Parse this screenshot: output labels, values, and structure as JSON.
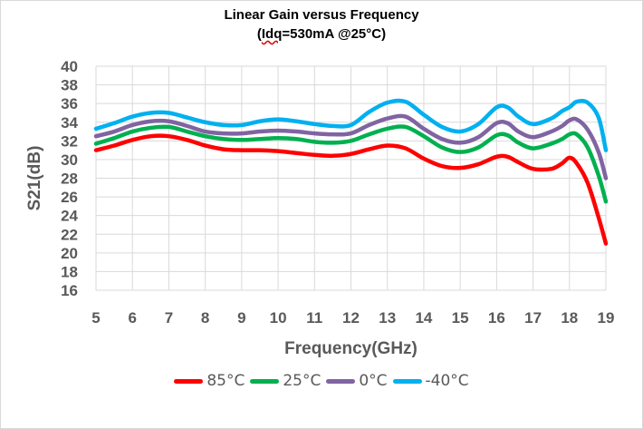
{
  "chart_data": {
    "type": "line",
    "title": "Linear Gain versus Frequency",
    "subtitle_prefix": "(",
    "subtitle_underlined": "Idq",
    "subtitle_rest": "=530mA @25°C)",
    "xlabel": "Frequency(GHz)",
    "ylabel": "S21(dB)",
    "xlim": [
      5,
      19
    ],
    "ylim": [
      16,
      40
    ],
    "xticks": [
      "5",
      "6",
      "7",
      "8",
      "9",
      "10",
      "11",
      "12",
      "13",
      "14",
      "15",
      "16",
      "17",
      "18",
      "19"
    ],
    "yticks": [
      "16",
      "18",
      "20",
      "22",
      "24",
      "26",
      "28",
      "30",
      "32",
      "34",
      "36",
      "38",
      "40"
    ],
    "grid": true,
    "legend_position": "bottom",
    "series": [
      {
        "name": "85°C",
        "color": "#ff0000",
        "points": [
          [
            5,
            31.0
          ],
          [
            5.5,
            31.5
          ],
          [
            6,
            32.1
          ],
          [
            6.5,
            32.5
          ],
          [
            7,
            32.5
          ],
          [
            7.5,
            32.1
          ],
          [
            8,
            31.5
          ],
          [
            8.5,
            31.1
          ],
          [
            9,
            31.0
          ],
          [
            9.5,
            31.0
          ],
          [
            10,
            30.9
          ],
          [
            10.5,
            30.7
          ],
          [
            11,
            30.5
          ],
          [
            11.5,
            30.4
          ],
          [
            12,
            30.6
          ],
          [
            12.5,
            31.1
          ],
          [
            13,
            31.5
          ],
          [
            13.5,
            31.2
          ],
          [
            14,
            30.1
          ],
          [
            14.5,
            29.3
          ],
          [
            15,
            29.1
          ],
          [
            15.5,
            29.5
          ],
          [
            16,
            30.3
          ],
          [
            16.3,
            30.3
          ],
          [
            16.6,
            29.7
          ],
          [
            17,
            29.0
          ],
          [
            17.5,
            29.0
          ],
          [
            17.8,
            29.6
          ],
          [
            18,
            30.2
          ],
          [
            18.2,
            29.6
          ],
          [
            18.5,
            27.5
          ],
          [
            18.8,
            23.8
          ],
          [
            19,
            21.0
          ]
        ]
      },
      {
        "name": "25°C",
        "color": "#00b050",
        "points": [
          [
            5,
            31.7
          ],
          [
            5.5,
            32.3
          ],
          [
            6,
            33.0
          ],
          [
            6.5,
            33.4
          ],
          [
            7,
            33.5
          ],
          [
            7.5,
            33.0
          ],
          [
            8,
            32.5
          ],
          [
            8.5,
            32.2
          ],
          [
            9,
            32.1
          ],
          [
            9.5,
            32.2
          ],
          [
            10,
            32.3
          ],
          [
            10.5,
            32.2
          ],
          [
            11,
            31.9
          ],
          [
            11.5,
            31.8
          ],
          [
            12,
            32.0
          ],
          [
            12.5,
            32.7
          ],
          [
            13,
            33.3
          ],
          [
            13.5,
            33.5
          ],
          [
            14,
            32.5
          ],
          [
            14.5,
            31.3
          ],
          [
            15,
            30.8
          ],
          [
            15.5,
            31.3
          ],
          [
            16,
            32.6
          ],
          [
            16.3,
            32.6
          ],
          [
            16.6,
            31.8
          ],
          [
            17,
            31.2
          ],
          [
            17.5,
            31.7
          ],
          [
            17.8,
            32.2
          ],
          [
            18,
            32.7
          ],
          [
            18.2,
            32.7
          ],
          [
            18.5,
            31.3
          ],
          [
            18.8,
            28.3
          ],
          [
            19,
            25.5
          ]
        ]
      },
      {
        "name": "0°C",
        "color": "#8064a2",
        "points": [
          [
            5,
            32.5
          ],
          [
            5.5,
            33.0
          ],
          [
            6,
            33.7
          ],
          [
            6.5,
            34.1
          ],
          [
            7,
            34.1
          ],
          [
            7.5,
            33.6
          ],
          [
            8,
            33.0
          ],
          [
            8.5,
            32.8
          ],
          [
            9,
            32.8
          ],
          [
            9.5,
            33.0
          ],
          [
            10,
            33.1
          ],
          [
            10.5,
            33.0
          ],
          [
            11,
            32.8
          ],
          [
            11.5,
            32.7
          ],
          [
            12,
            32.8
          ],
          [
            12.5,
            33.7
          ],
          [
            13,
            34.4
          ],
          [
            13.5,
            34.6
          ],
          [
            14,
            33.3
          ],
          [
            14.5,
            32.2
          ],
          [
            15,
            31.8
          ],
          [
            15.5,
            32.4
          ],
          [
            16,
            33.9
          ],
          [
            16.3,
            33.9
          ],
          [
            16.6,
            33.0
          ],
          [
            17,
            32.4
          ],
          [
            17.5,
            33.0
          ],
          [
            17.8,
            33.6
          ],
          [
            18,
            34.2
          ],
          [
            18.2,
            34.3
          ],
          [
            18.5,
            33.2
          ],
          [
            18.8,
            30.8
          ],
          [
            19,
            28.0
          ]
        ]
      },
      {
        "name": "-40°C",
        "color": "#00b0f0",
        "points": [
          [
            5,
            33.3
          ],
          [
            5.5,
            33.9
          ],
          [
            6,
            34.6
          ],
          [
            6.5,
            35.0
          ],
          [
            7,
            35.0
          ],
          [
            7.5,
            34.5
          ],
          [
            8,
            34.0
          ],
          [
            8.5,
            33.7
          ],
          [
            9,
            33.7
          ],
          [
            9.5,
            34.1
          ],
          [
            10,
            34.3
          ],
          [
            10.5,
            34.1
          ],
          [
            11,
            33.8
          ],
          [
            11.5,
            33.6
          ],
          [
            12,
            33.7
          ],
          [
            12.5,
            35.1
          ],
          [
            13,
            36.1
          ],
          [
            13.5,
            36.2
          ],
          [
            14,
            34.8
          ],
          [
            14.5,
            33.5
          ],
          [
            15,
            33.0
          ],
          [
            15.5,
            33.8
          ],
          [
            16,
            35.6
          ],
          [
            16.3,
            35.6
          ],
          [
            16.6,
            34.6
          ],
          [
            17,
            33.8
          ],
          [
            17.5,
            34.4
          ],
          [
            17.8,
            35.2
          ],
          [
            18,
            35.6
          ],
          [
            18.2,
            36.2
          ],
          [
            18.5,
            36.1
          ],
          [
            18.8,
            34.5
          ],
          [
            19,
            31.0
          ]
        ]
      }
    ]
  }
}
